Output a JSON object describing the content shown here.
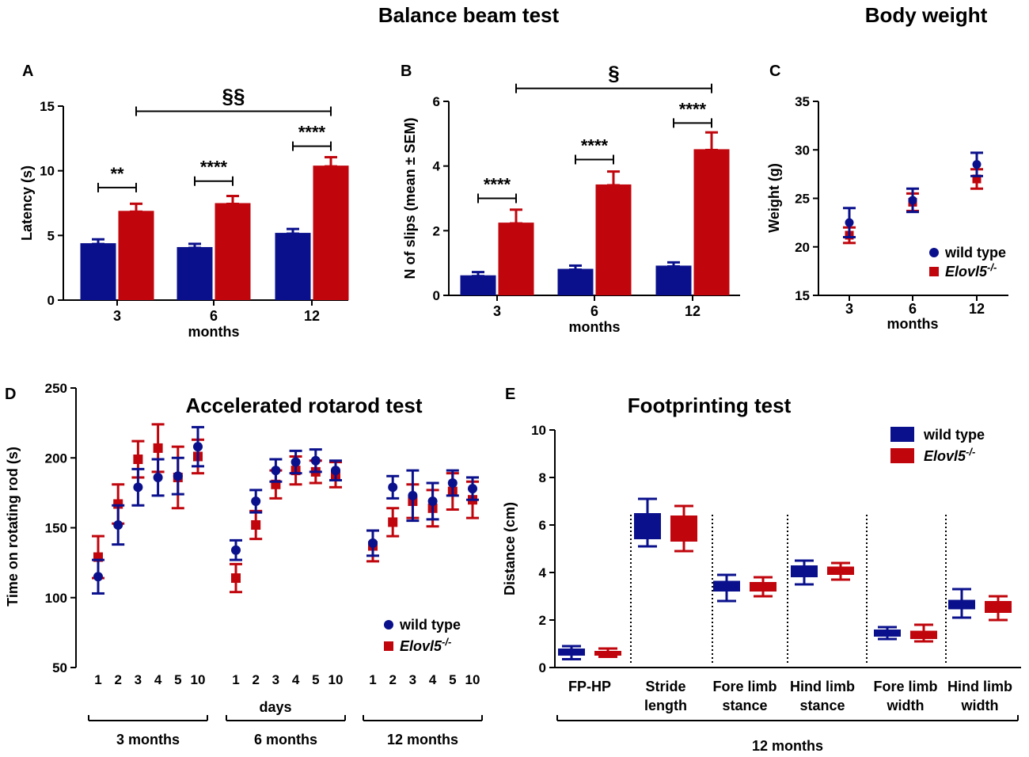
{
  "headings": {
    "balance": "Balance beam test",
    "bodyweight": "Body weight",
    "rotarod": "Accelerated rotarod test",
    "footprint": "Footprinting test"
  },
  "legend": {
    "wt": "wild type",
    "ko_base": "Elovl5",
    "ko_sup": "-/-"
  },
  "colors": {
    "wt": "#0a108c",
    "ko": "#c0050c"
  },
  "chart_data": [
    {
      "id": "A",
      "type": "bar",
      "panel_label": "A",
      "categories": [
        "3",
        "6",
        "12"
      ],
      "xlabel": "months",
      "ylabel": "Latency (s)",
      "ylim": [
        0,
        15
      ],
      "yticks": [
        0,
        5,
        10,
        15
      ],
      "series": [
        {
          "name": "wild type",
          "values": [
            4.4,
            4.1,
            5.2
          ],
          "sem": [
            0.3,
            0.25,
            0.3
          ]
        },
        {
          "name": "Elovl5-/-",
          "values": [
            6.9,
            7.5,
            10.4
          ],
          "sem": [
            0.55,
            0.55,
            0.65
          ]
        }
      ],
      "annotations": [
        {
          "text": "**",
          "type": "within",
          "group": 0,
          "y": 8.7
        },
        {
          "text": "****",
          "type": "within",
          "group": 1,
          "y": 9.2
        },
        {
          "text": "****",
          "type": "within",
          "group": 2,
          "y": 11.9
        },
        {
          "text": "§§",
          "type": "across",
          "from": 0,
          "to": 2,
          "y": 14.6
        }
      ]
    },
    {
      "id": "B",
      "type": "bar",
      "panel_label": "B",
      "categories": [
        "3",
        "6",
        "12"
      ],
      "xlabel": "months",
      "ylabel": "N of slips (mean ± SEM)",
      "ylim": [
        0,
        6
      ],
      "yticks": [
        0,
        2,
        4,
        6
      ],
      "series": [
        {
          "name": "wild type",
          "values": [
            0.62,
            0.82,
            0.92
          ],
          "sem": [
            0.1,
            0.1,
            0.1
          ]
        },
        {
          "name": "Elovl5-/-",
          "values": [
            2.25,
            3.43,
            4.52
          ],
          "sem": [
            0.4,
            0.4,
            0.52
          ]
        }
      ],
      "annotations": [
        {
          "text": "****",
          "type": "within",
          "group": 0,
          "y": 3.0
        },
        {
          "text": "****",
          "type": "within",
          "group": 1,
          "y": 4.2
        },
        {
          "text": "****",
          "type": "within",
          "group": 2,
          "y": 5.33
        },
        {
          "text": "§",
          "type": "across",
          "from": 0,
          "to": 2,
          "y": 6.4
        }
      ]
    },
    {
      "id": "C",
      "type": "scatter",
      "panel_label": "C",
      "categories": [
        "3",
        "6",
        "12"
      ],
      "xlabel": "months",
      "ylabel": "Weight (g)",
      "ylim": [
        15,
        35
      ],
      "yticks": [
        15,
        20,
        25,
        30,
        35
      ],
      "series": [
        {
          "name": "wild type",
          "values": [
            22.5,
            24.8,
            28.5
          ],
          "sem": [
            1.5,
            1.2,
            1.2
          ]
        },
        {
          "name": "Elovl5-/-",
          "values": [
            21.2,
            24.6,
            27.0
          ],
          "sem": [
            0.8,
            0.9,
            1.0
          ]
        }
      ]
    },
    {
      "id": "D",
      "type": "scatter",
      "panel_label": "D",
      "groups": [
        {
          "label": "3 months",
          "days": [
            "1",
            "2",
            "3",
            "4",
            "5",
            "10"
          ]
        },
        {
          "label": "6 months",
          "days": [
            "1",
            "2",
            "3",
            "4",
            "5",
            "10"
          ]
        },
        {
          "label": "12 months",
          "days": [
            "1",
            "2",
            "3",
            "4",
            "5",
            "10"
          ]
        }
      ],
      "xlabel": "days",
      "ylabel": "Time on rotating rod (s)",
      "ylim": [
        50,
        250
      ],
      "yticks": [
        50,
        100,
        150,
        200,
        250
      ],
      "series": [
        {
          "name": "wild type",
          "values": [
            115,
            152,
            179,
            186,
            187,
            208,
            134,
            169,
            191,
            197,
            198,
            191,
            139,
            179,
            173,
            169,
            182,
            178
          ],
          "sem": [
            12,
            14,
            13,
            13,
            13,
            14,
            7,
            8,
            8,
            8,
            8,
            7,
            9,
            8,
            18,
            13,
            9,
            8
          ]
        },
        {
          "name": "Elovl5-/-",
          "values": [
            129,
            167,
            199,
            207,
            186,
            201,
            114,
            152,
            181,
            191,
            190,
            188,
            137,
            154,
            169,
            164,
            176,
            170
          ],
          "sem": [
            15,
            14,
            13,
            17,
            22,
            12,
            10,
            10,
            10,
            10,
            8,
            9,
            11,
            10,
            12,
            13,
            13,
            13
          ]
        }
      ]
    },
    {
      "id": "E",
      "type": "box",
      "panel_label": "E",
      "categories": [
        [
          "FP-HP"
        ],
        [
          "Stride",
          "length"
        ],
        [
          "Fore limb",
          "stance"
        ],
        [
          "Hind limb",
          "stance"
        ],
        [
          "Fore limb",
          "width"
        ],
        [
          "Hind limb",
          "width"
        ]
      ],
      "xlabel": "12 months",
      "ylabel": "Distance (cm)",
      "ylim": [
        0,
        10
      ],
      "yticks": [
        0,
        2,
        4,
        6,
        8,
        10
      ],
      "series": [
        {
          "name": "wild type",
          "boxes": [
            [
              0.35,
              0.5,
              0.65,
              0.8,
              0.9
            ],
            [
              5.1,
              5.4,
              6.0,
              6.5,
              7.1
            ],
            [
              2.8,
              3.2,
              3.45,
              3.65,
              3.9
            ],
            [
              3.5,
              3.8,
              4.0,
              4.3,
              4.5
            ],
            [
              1.2,
              1.3,
              1.45,
              1.6,
              1.7
            ],
            [
              2.1,
              2.45,
              2.65,
              2.85,
              3.3
            ]
          ]
        },
        {
          "name": "Elovl5-/-",
          "boxes": [
            [
              0.45,
              0.5,
              0.6,
              0.7,
              0.8
            ],
            [
              4.9,
              5.3,
              5.9,
              6.4,
              6.8
            ],
            [
              3.0,
              3.2,
              3.4,
              3.6,
              3.8
            ],
            [
              3.7,
              3.9,
              4.05,
              4.25,
              4.4
            ],
            [
              1.1,
              1.2,
              1.4,
              1.55,
              1.8
            ],
            [
              2.0,
              2.3,
              2.55,
              2.8,
              3.0
            ]
          ]
        }
      ]
    }
  ]
}
